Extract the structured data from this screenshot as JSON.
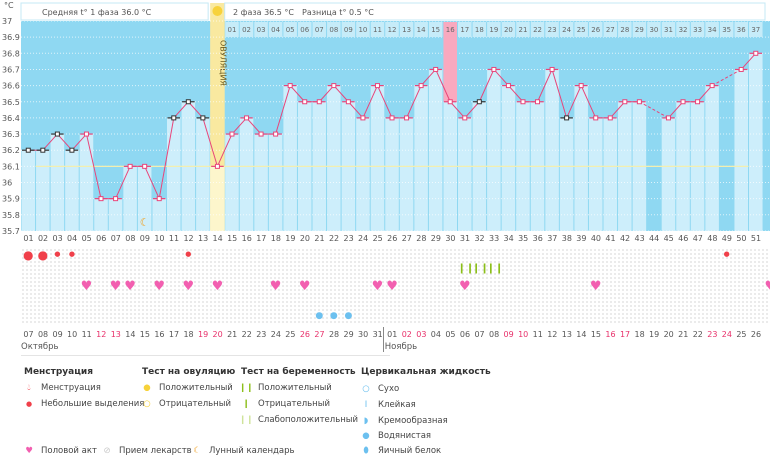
{
  "chart_data": {
    "type": "line",
    "yunit": "°C",
    "ylim": [
      35.7,
      37.0
    ],
    "yticks": [
      "37",
      "36.9",
      "36.8",
      "36.7",
      "36.6",
      "36.5",
      "36.4",
      "36.3",
      "36.2",
      "36.1",
      "36",
      "35.9",
      "35.8",
      "35.7"
    ],
    "cycle_days": [
      1,
      2,
      3,
      4,
      5,
      6,
      7,
      8,
      9,
      10,
      11,
      12,
      13,
      14,
      15,
      16,
      17,
      18,
      19,
      20,
      21,
      22,
      23,
      24,
      25,
      26,
      27,
      28,
      29,
      30,
      31,
      32,
      33,
      34,
      35,
      36,
      37,
      38,
      39,
      40,
      41,
      42,
      43,
      44,
      45,
      46,
      47,
      48,
      49,
      50,
      51
    ],
    "temperatures": [
      36.2,
      36.2,
      36.3,
      36.2,
      36.3,
      35.9,
      35.9,
      36.1,
      36.1,
      35.9,
      36.4,
      36.5,
      36.4,
      36.1,
      36.3,
      36.4,
      36.3,
      36.3,
      36.6,
      36.5,
      36.5,
      36.6,
      36.5,
      36.4,
      36.6,
      36.4,
      36.4,
      36.6,
      36.7,
      36.5,
      36.4,
      36.5,
      36.7,
      36.6,
      36.5,
      36.5,
      36.7,
      36.4,
      36.6,
      36.4,
      36.4,
      36.5,
      36.5,
      null,
      36.4,
      36.5,
      36.5,
      36.6,
      null,
      36.7,
      36.8
    ],
    "excluded_days": [
      1,
      2,
      3,
      4,
      11,
      12,
      13,
      32,
      38
    ],
    "coverline": 36.1,
    "ovulation_day": 14,
    "ovulation_label": "ОВУЛЯЦИЯ",
    "highlight_phase2_day": 16,
    "moon_day": 9,
    "line_color": "#e8457a",
    "bar_color": "#cdeefb",
    "bg_color": "#8fd8f2"
  },
  "header": {
    "phase1": "Средняя t° 1 фаза 36.0 °C",
    "phase2": "2 фаза 36.5 °C",
    "diff": "Разница t° 0.5 °C"
  },
  "dates": [
    "07",
    "08",
    "09",
    "10",
    "11",
    "12",
    "13",
    "14",
    "15",
    "16",
    "17",
    "18",
    "19",
    "20",
    "21",
    "22",
    "23",
    "24",
    "25",
    "26",
    "27",
    "28",
    "29",
    "30",
    "31",
    "01",
    "02",
    "03",
    "04",
    "05",
    "06",
    "07",
    "08",
    "09",
    "10",
    "11",
    "12",
    "13",
    "14",
    "15",
    "16",
    "17",
    "18",
    "19",
    "20",
    "21",
    "22",
    "23",
    "24",
    "25",
    "26"
  ],
  "weekend_days": [
    5,
    6,
    12,
    13,
    19,
    20,
    26,
    27,
    33,
    34,
    40,
    41,
    47,
    48
  ],
  "months": {
    "oct": "Октябрь",
    "nov": "Ноябрь"
  },
  "markers": {
    "menstruation_big": [
      1,
      2
    ],
    "menstruation_small": [
      3,
      4,
      12,
      49
    ],
    "pregnancy_test": [
      31,
      32,
      33
    ],
    "intercourse": [
      5,
      7,
      8,
      10,
      12,
      14,
      18,
      20,
      25,
      26,
      31,
      40,
      52
    ],
    "cervical_watery": [
      21,
      22,
      23
    ]
  },
  "legend": {
    "menstruation": {
      "title": "Менструация",
      "items": [
        "Менструация",
        "Небольшие выделения"
      ]
    },
    "ovulation_test": {
      "title": "Тест на овуляцию",
      "items": [
        "Положительный",
        "Отрицательный"
      ]
    },
    "pregnancy_test": {
      "title": "Тест на беременность",
      "items": [
        "Положительный",
        "Отрицательный",
        "Слабоположительный"
      ]
    },
    "cervical": {
      "title": "Цервикальная жидкость",
      "items": [
        "Сухо",
        "Клейкая",
        "Кремообразная",
        "Водянистая",
        "Яичный белок"
      ]
    },
    "other": [
      "Половой акт",
      "Прием лекарств",
      "Лунный календарь"
    ]
  }
}
